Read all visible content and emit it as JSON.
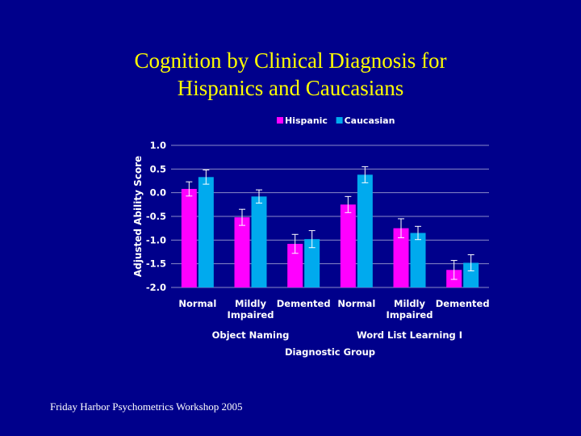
{
  "slide": {
    "title_line1": "Cognition by Clinical Diagnosis for",
    "title_line2": "Hispanics and Caucasians",
    "footer": "Friday Harbor Psychometrics Workshop 2005"
  },
  "chart_data": {
    "type": "bar",
    "title": "Cognition by Clinical Diagnosis for Hispanics and Caucasians",
    "ylabel": "Adjusted Ability Score",
    "xlabel": "Diagnostic Group",
    "ylim": [
      -2.0,
      1.0
    ],
    "yticks": [
      1.0,
      0.5,
      0.0,
      -0.5,
      -1.0,
      -1.5,
      -2.0
    ],
    "ytick_labels": [
      "1.0",
      "0.5",
      "0.0",
      "-0.5",
      "-1.0",
      "-1.5",
      "-2.0"
    ],
    "legend_position": "top",
    "grid": true,
    "categories": [
      "Normal",
      "Mildly Impaired",
      "Demented",
      "Normal",
      "Mildly Impaired",
      "Demented"
    ],
    "category_lines": [
      [
        "Normal"
      ],
      [
        "Mildly",
        "Impaired"
      ],
      [
        "Demented"
      ],
      [
        "Normal"
      ],
      [
        "Mildly",
        "Impaired"
      ],
      [
        "Demented"
      ]
    ],
    "groups": [
      {
        "label": "Object Naming",
        "category_indices": [
          0,
          1,
          2
        ]
      },
      {
        "label": "Word List Learning I",
        "category_indices": [
          3,
          4,
          5
        ]
      }
    ],
    "series": [
      {
        "name": "Hispanic",
        "color": "#ff00ff",
        "values": [
          0.08,
          -0.52,
          -1.08,
          -0.25,
          -0.75,
          -1.63
        ],
        "error": [
          0.15,
          0.17,
          0.2,
          0.17,
          0.2,
          0.2
        ]
      },
      {
        "name": "Caucasian",
        "color": "#00aaee",
        "values": [
          0.33,
          -0.08,
          -0.98,
          0.38,
          -0.85,
          -1.48
        ],
        "error": [
          0.15,
          0.14,
          0.18,
          0.17,
          0.14,
          0.17
        ]
      }
    ],
    "colors": {
      "background": "#00008b",
      "grid": "#8a8ac8",
      "error_bar": "#ffffff"
    }
  }
}
